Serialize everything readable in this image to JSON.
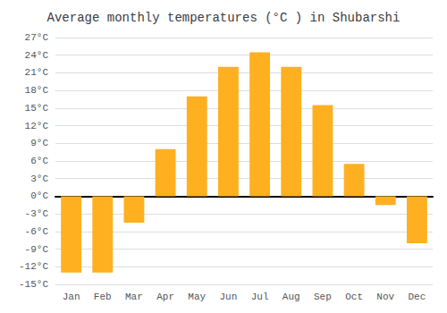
{
  "chart_data": {
    "type": "bar",
    "title": "Average monthly temperatures (°C ) in Shubarshi",
    "categories": [
      "Jan",
      "Feb",
      "Mar",
      "Apr",
      "May",
      "Jun",
      "Jul",
      "Aug",
      "Sep",
      "Oct",
      "Nov",
      "Dec"
    ],
    "values": [
      -13,
      -13,
      -4.5,
      8,
      17,
      22,
      24.5,
      22,
      15.5,
      5.5,
      -1.5,
      -8
    ],
    "color": "#FFB020",
    "ylim": [
      -15,
      27
    ],
    "yticks": [
      {
        "value": -15,
        "label": "-15°C"
      },
      {
        "value": -12,
        "label": "-12°C"
      },
      {
        "value": -9,
        "label": "-9°C"
      },
      {
        "value": -6,
        "label": "-6°C"
      },
      {
        "value": -3,
        "label": "-3°C"
      },
      {
        "value": 0,
        "label": "0°C"
      },
      {
        "value": 3,
        "label": "3°C"
      },
      {
        "value": 6,
        "label": "6°C"
      },
      {
        "value": 9,
        "label": "9°C"
      },
      {
        "value": 12,
        "label": "12°C"
      },
      {
        "value": 15,
        "label": "15°C"
      },
      {
        "value": 18,
        "label": "18°C"
      },
      {
        "value": 21,
        "label": "21°C"
      },
      {
        "value": 24,
        "label": "24°C"
      },
      {
        "value": 27,
        "label": "27°C"
      }
    ],
    "grid": true
  }
}
